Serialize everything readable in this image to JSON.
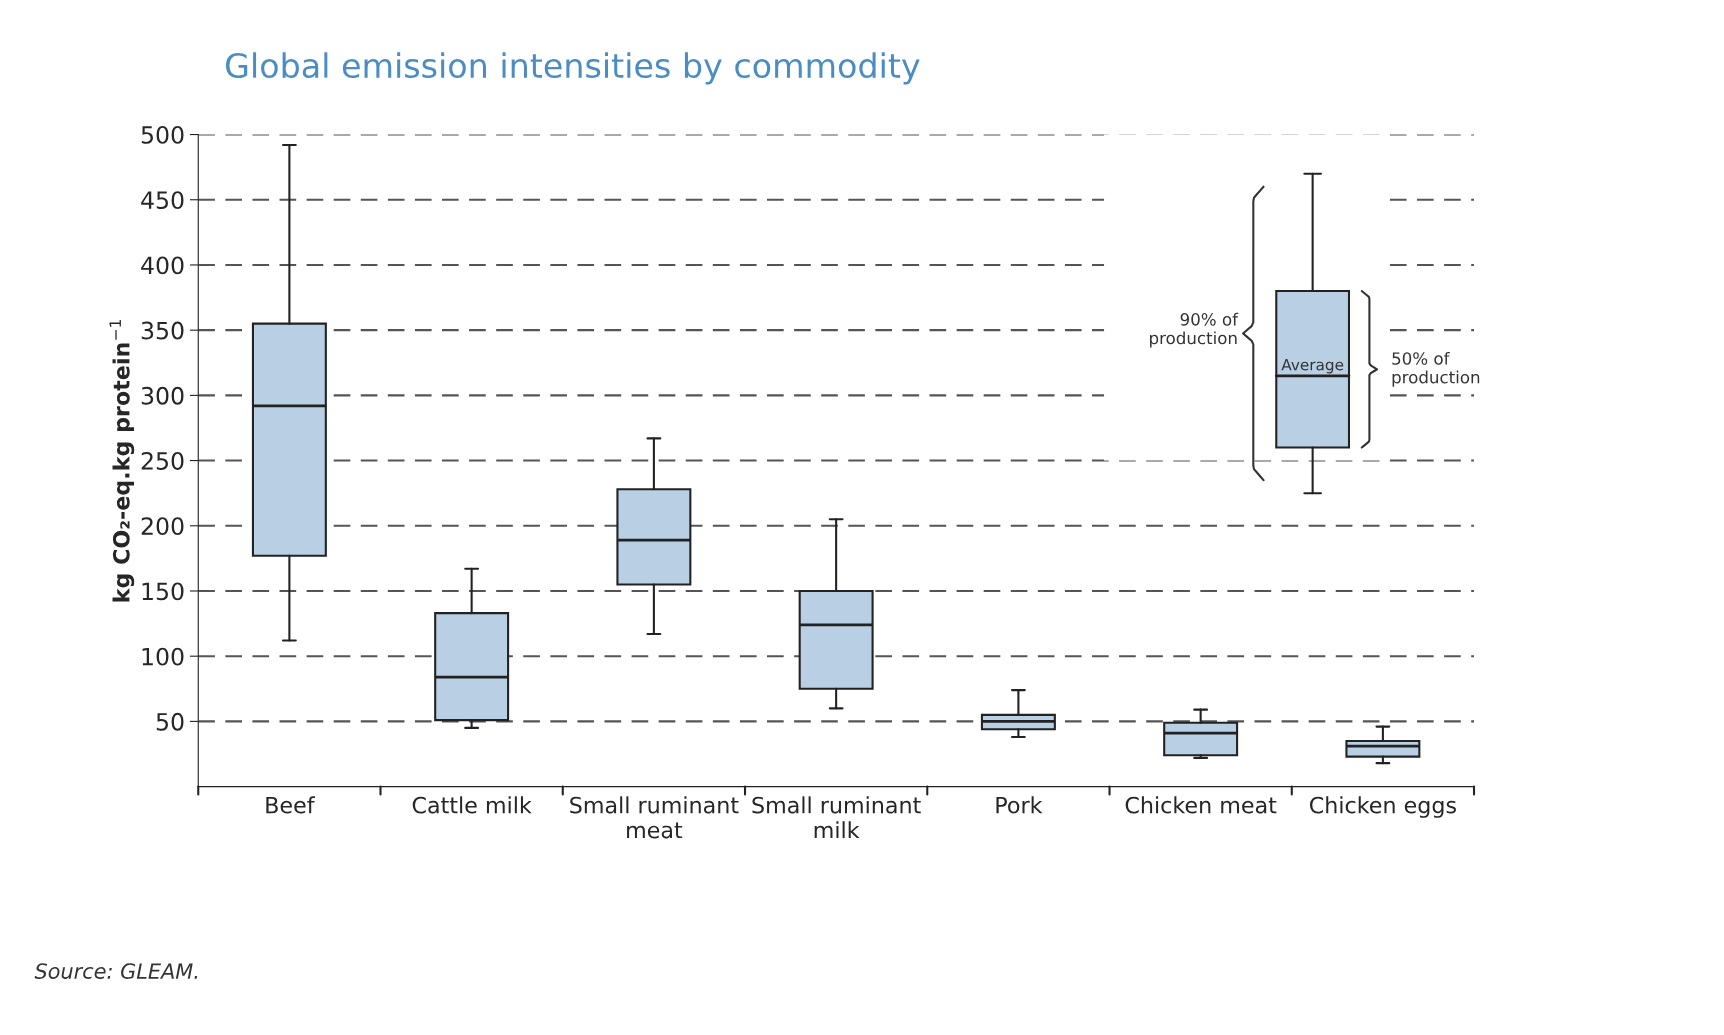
{
  "chart_data": {
    "type": "box",
    "title": "Global emission intensities by commodity",
    "ylabel": "kg CO₂-eq.kg protein$^{−1}$",
    "categories": [
      "Beef",
      "Cattle milk",
      "Small ruminant\nmeat",
      "Small ruminant\nmilk",
      "Pork",
      "Chicken meat",
      "Chicken eggs"
    ],
    "boxes": [
      {
        "low": 112,
        "q1": 177,
        "median": 292,
        "q3": 355,
        "high": 492
      },
      {
        "low": 45,
        "q1": 51,
        "median": 84,
        "q3": 133,
        "high": 167
      },
      {
        "low": 117,
        "q1": 155,
        "median": 189,
        "q3": 228,
        "high": 267
      },
      {
        "low": 60,
        "q1": 75,
        "median": 124,
        "q3": 150,
        "high": 205
      },
      {
        "low": 38,
        "q1": 44,
        "median": 50,
        "q3": 55,
        "high": 74
      },
      {
        "low": 22,
        "q1": 24,
        "median": 41,
        "q3": 49,
        "high": 59
      },
      {
        "low": 18,
        "q1": 23,
        "median": 31,
        "q3": 35,
        "high": 46
      }
    ],
    "color": "#b8cfe4",
    "ylim": [
      0,
      500
    ],
    "yticks": [
      50,
      100,
      150,
      200,
      250,
      300,
      350,
      400,
      450,
      500
    ],
    "grid": "y",
    "annotations": [
      "Source: GLEAM.",
      "90% of\nproduction",
      "50% of\nproduction",
      "Average"
    ]
  }
}
